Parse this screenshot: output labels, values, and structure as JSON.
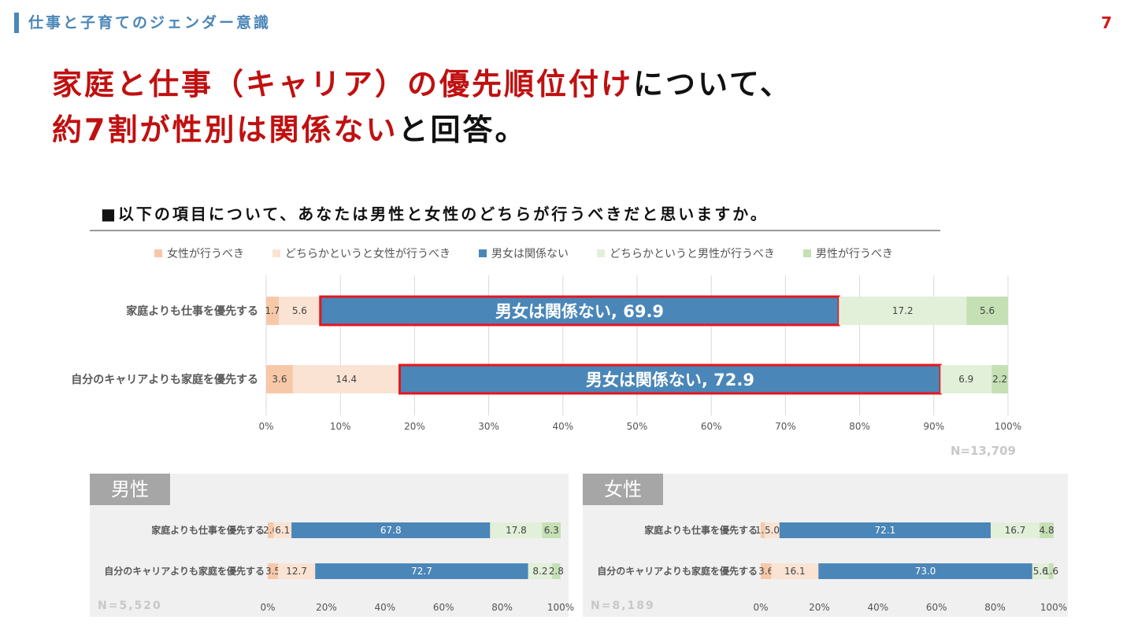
{
  "header": {
    "title": "仕事と子育てのジェンダー意識",
    "page_number": "7"
  },
  "headline": {
    "line1_red": "家庭と仕事（キャリア）の優先順位付け",
    "line1_black": "について、",
    "line2_red": "約7割が性別は関係ない",
    "line2_black": "と回答。"
  },
  "question": "■以下の項目について、あなたは男性と女性のどちらが行うべきだと思いますか。",
  "colors": {
    "accent": "#4a86b8",
    "red": "#c01010",
    "c1": "#f7c8a8",
    "c2": "#fbe3d3",
    "c3": "#4a86b8",
    "c4": "#e2efd9",
    "c5": "#c5e0b4",
    "highlight": "#e8141c"
  },
  "chart_data": [
    {
      "type": "bar",
      "orientation": "horizontal-stacked-100",
      "legend_position": "top",
      "categories": [
        "家庭よりも仕事を優先する",
        "自分のキャリアよりも家庭を優先する"
      ],
      "series": [
        {
          "name": "女性が行うべき",
          "values": [
            1.7,
            3.6
          ]
        },
        {
          "name": "どちらかというと女性が行うべき",
          "values": [
            5.6,
            14.4
          ]
        },
        {
          "name": "男女は関係ない",
          "values": [
            69.9,
            72.9
          ]
        },
        {
          "name": "どちらかというと男性が行うべき",
          "values": [
            17.2,
            6.9
          ]
        },
        {
          "name": "男性が行うべき",
          "values": [
            5.6,
            2.2
          ]
        }
      ],
      "highlight_labels": [
        "男女は関係ない, 69.9",
        "男女は関係ない, 72.9"
      ],
      "x_ticks": [
        "0%",
        "10%",
        "20%",
        "30%",
        "40%",
        "50%",
        "60%",
        "70%",
        "80%",
        "90%",
        "100%"
      ],
      "xlim": [
        0,
        100
      ],
      "grid": true,
      "note": "N=13,709"
    },
    {
      "type": "bar",
      "orientation": "horizontal-stacked-100",
      "panel_label": "男性",
      "categories": [
        "家庭よりも仕事を優先する",
        "自分のキャリアよりも家庭を優先する"
      ],
      "series": [
        {
          "values": [
            2.0,
            3.5
          ]
        },
        {
          "values": [
            6.1,
            12.7
          ]
        },
        {
          "values": [
            67.8,
            72.7
          ]
        },
        {
          "values": [
            17.8,
            8.2
          ]
        },
        {
          "values": [
            6.3,
            2.8
          ]
        }
      ],
      "x_ticks": [
        "0%",
        "20%",
        "40%",
        "60%",
        "80%",
        "100%"
      ],
      "xlim": [
        0,
        100
      ],
      "note": "N=5,520"
    },
    {
      "type": "bar",
      "orientation": "horizontal-stacked-100",
      "panel_label": "女性",
      "categories": [
        "家庭よりも仕事を優先する",
        "自分のキャリアよりも家庭を優先する"
      ],
      "series": [
        {
          "values": [
            1.4,
            3.6
          ]
        },
        {
          "values": [
            5.0,
            16.1
          ]
        },
        {
          "values": [
            72.1,
            73.0
          ]
        },
        {
          "values": [
            16.7,
            5.6
          ]
        },
        {
          "values": [
            4.8,
            1.6
          ]
        }
      ],
      "x_ticks": [
        "0%",
        "20%",
        "40%",
        "60%",
        "80%",
        "100%"
      ],
      "xlim": [
        0,
        100
      ],
      "note": "N=8,189"
    }
  ]
}
